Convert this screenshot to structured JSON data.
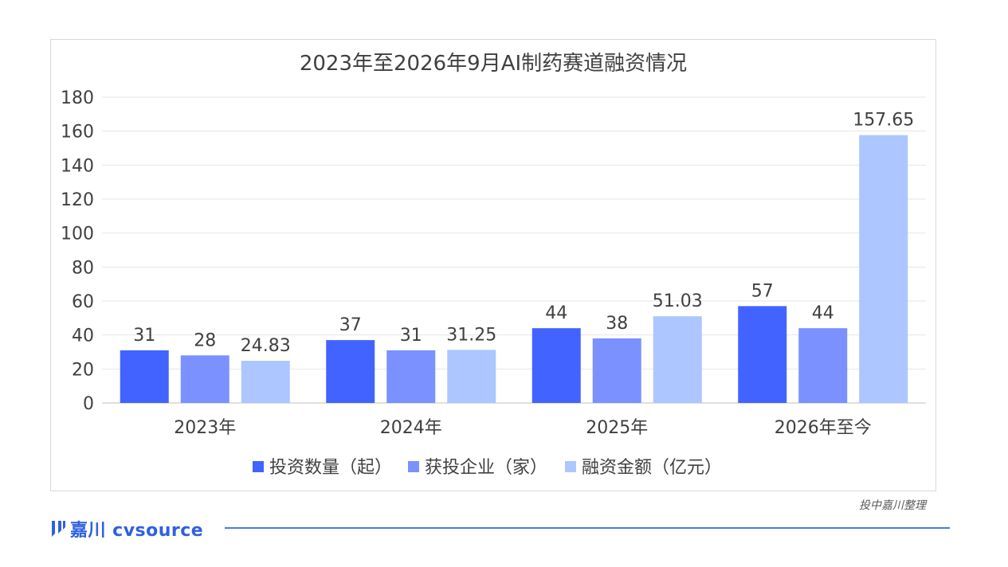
{
  "chart_data": {
    "type": "bar",
    "title": "2023年至2026年9月AI制药赛道融资情况",
    "categories": [
      "2023年",
      "2024年",
      "2025年",
      "2026年至今"
    ],
    "series": [
      {
        "name": "投资数量（起）",
        "color": "#4263ff",
        "values": [
          31,
          37,
          44,
          57
        ],
        "labels": [
          "31",
          "37",
          "44",
          "57"
        ]
      },
      {
        "name": "获投企业（家）",
        "color": "#7a91ff",
        "values": [
          28,
          31,
          38,
          44
        ],
        "labels": [
          "28",
          "31",
          "38",
          "44"
        ]
      },
      {
        "name": "融资金额（亿元）",
        "color": "#adc6ff",
        "values": [
          24.83,
          31.25,
          51.03,
          157.65
        ],
        "labels": [
          "24.83",
          "31.25",
          "51.03",
          "157.65"
        ]
      }
    ],
    "ylim": [
      0,
      180
    ],
    "yticks": [
      "0",
      "20",
      "40",
      "60",
      "80",
      "100",
      "120",
      "140",
      "160",
      "180"
    ],
    "grid": true,
    "legend_position": "bottom"
  },
  "source_note": "投中嘉川整理",
  "brand": {
    "name": "嘉川 cvsource",
    "color": "#3060e0"
  }
}
